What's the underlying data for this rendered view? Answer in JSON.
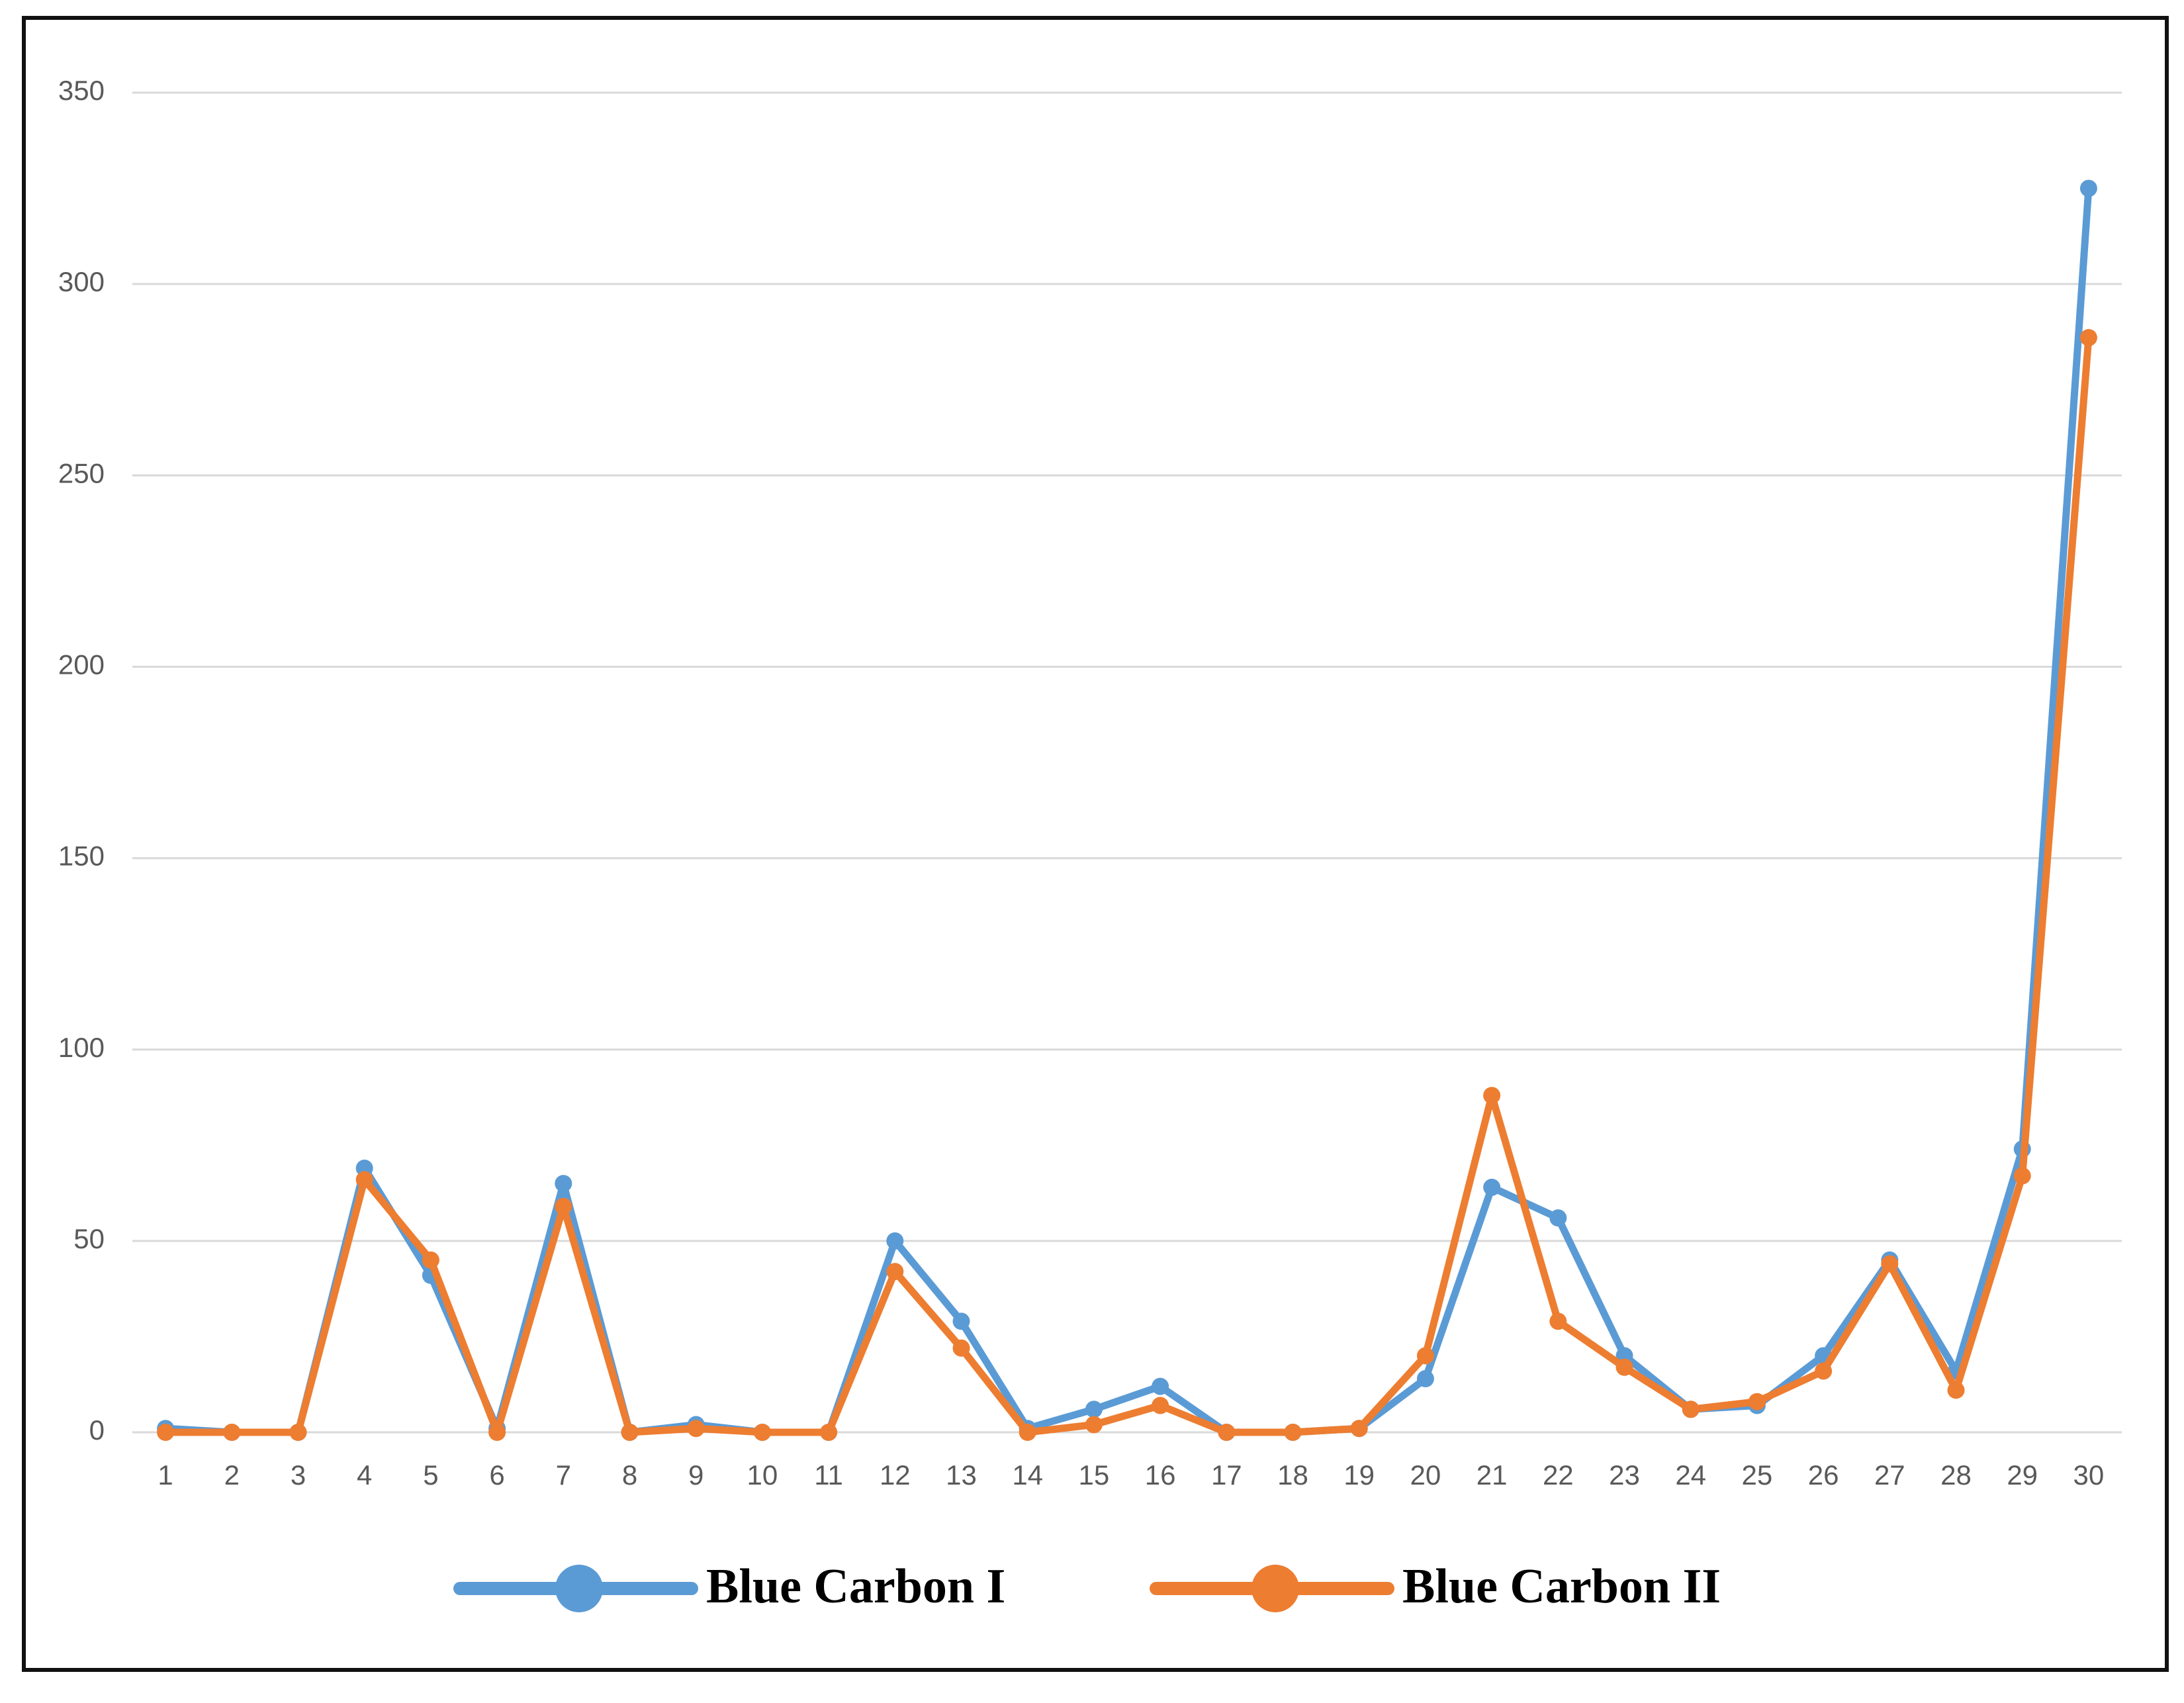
{
  "chart_data": {
    "type": "line",
    "categories": [
      "1",
      "2",
      "3",
      "4",
      "5",
      "6",
      "7",
      "8",
      "9",
      "10",
      "11",
      "12",
      "13",
      "14",
      "15",
      "16",
      "17",
      "18",
      "19",
      "20",
      "21",
      "22",
      "23",
      "24",
      "25",
      "26",
      "27",
      "28",
      "29",
      "30"
    ],
    "series": [
      {
        "name": "Blue Carbon I",
        "color": "#5b9bd5",
        "values": [
          1,
          0,
          0,
          69,
          41,
          1,
          65,
          0,
          2,
          0,
          0,
          50,
          29,
          1,
          6,
          12,
          0,
          0,
          1,
          14,
          64,
          56,
          20,
          6,
          7,
          20,
          45,
          16,
          74,
          325
        ]
      },
      {
        "name": "Blue Carbon II",
        "color": "#ed7d31",
        "values": [
          0,
          0,
          0,
          66,
          45,
          0,
          59,
          0,
          1,
          0,
          0,
          42,
          22,
          0,
          2,
          7,
          0,
          0,
          1,
          20,
          88,
          29,
          17,
          6,
          8,
          16,
          44,
          11,
          67,
          286
        ]
      }
    ],
    "ylim": [
      0,
      350
    ],
    "yticks": [
      0,
      50,
      100,
      150,
      200,
      250,
      300,
      350
    ],
    "grid": true,
    "legend": "bottom"
  }
}
